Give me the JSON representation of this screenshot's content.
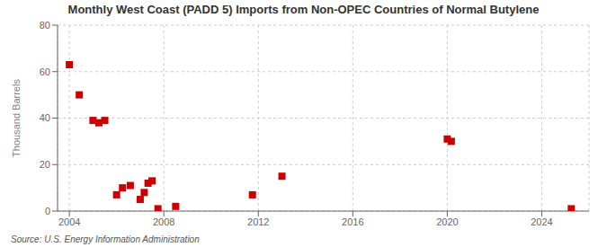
{
  "chart_data": {
    "type": "scatter",
    "title": "Monthly West Coast (PADD 5) Imports from Non-OPEC Countries of Normal Butylene",
    "ylabel": "Thousand Barrels",
    "annotation": "Source: U.S. Energy Information Administration",
    "x": [
      2004.0,
      2004.42,
      2005.0,
      2005.25,
      2005.5,
      2006.0,
      2006.25,
      2006.58,
      2007.0,
      2007.17,
      2007.33,
      2007.5,
      2007.75,
      2008.5,
      2011.75,
      2013.0,
      2020.0,
      2020.17,
      2025.25
    ],
    "values": [
      63,
      50,
      39,
      38,
      39,
      7,
      10,
      11,
      5,
      8,
      12,
      13,
      1,
      2,
      7,
      15,
      31,
      30,
      1
    ],
    "color": "#cc0000",
    "marker": "square",
    "xlim": [
      2003.5,
      2026
    ],
    "ylim": [
      0,
      80
    ],
    "xticks": [
      2004,
      2008,
      2012,
      2016,
      2020,
      2024
    ],
    "yticks": [
      0,
      20,
      40,
      60,
      80
    ],
    "grid": true
  }
}
